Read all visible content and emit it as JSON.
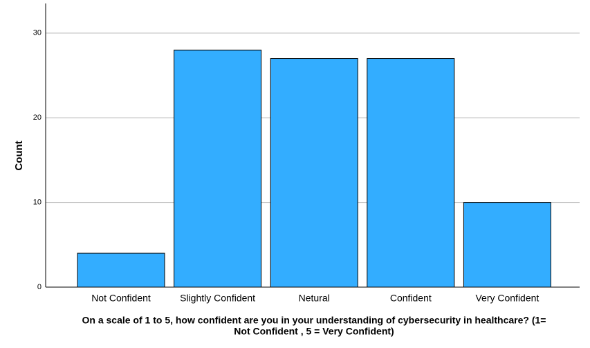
{
  "chart_data": {
    "type": "bar",
    "categories": [
      "Not Confident",
      "Slightly Confident",
      "Netural",
      "Confident",
      "Very Confident"
    ],
    "values": [
      4,
      28,
      27,
      27,
      10
    ],
    "color": "#33adff",
    "ylim": [
      0,
      33.5
    ],
    "yticks": [
      0,
      10,
      20,
      30
    ],
    "grid": true,
    "y_label": "Count",
    "x_label": [
      "On a scale of 1 to 5, how confident are you in your understanding of cybersecurity in healthcare? (1=",
      "Not Confident , 5 = Very Confident)"
    ]
  }
}
